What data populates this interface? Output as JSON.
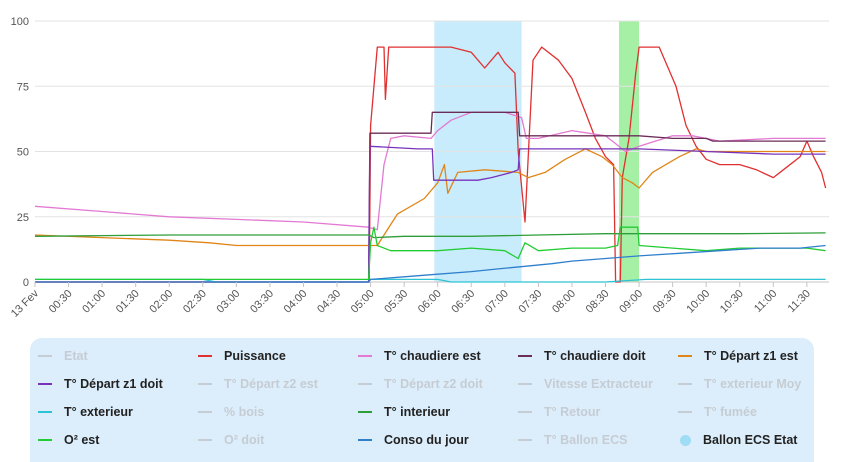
{
  "chart_data": {
    "type": "line",
    "y_ticks": [
      "0",
      "25",
      "50",
      "75",
      "100"
    ],
    "ylim": [
      0,
      100
    ],
    "x_ticks": [
      "13 Fev",
      "00:30",
      "01:00",
      "01:30",
      "02:00",
      "02:30",
      "03:00",
      "03:30",
      "04:00",
      "04:30",
      "05:00",
      "05:30",
      "06:00",
      "06:30",
      "07:00",
      "07:30",
      "08:00",
      "08:30",
      "09:00",
      "09:30",
      "10:00",
      "10:30",
      "11:00",
      "11:30"
    ],
    "x_unit": "hours since midnight 13 Fev",
    "xlim": [
      0,
      11.83
    ],
    "bands": [
      {
        "series": "Ballon ECS Etat",
        "x0": 5.95,
        "x1": 7.25,
        "color": "#c8ecfb"
      },
      {
        "series": "Ballon ECS Etat",
        "x0": 8.7,
        "x1": 9.0,
        "color": "#a6f0a6"
      }
    ],
    "series": [
      {
        "name": "Etat",
        "color": "#c6ccd3",
        "visible": false,
        "marker": "line",
        "points": []
      },
      {
        "name": "Puissance",
        "color": "#e03030",
        "visible": true,
        "marker": "line",
        "points": [
          [
            0,
            0
          ],
          [
            4.98,
            0
          ],
          [
            5.0,
            60
          ],
          [
            5.1,
            90
          ],
          [
            5.2,
            90
          ],
          [
            5.22,
            70
          ],
          [
            5.27,
            90
          ],
          [
            5.5,
            90
          ],
          [
            6.2,
            90
          ],
          [
            6.5,
            88
          ],
          [
            6.7,
            82
          ],
          [
            6.9,
            88
          ],
          [
            7.0,
            84
          ],
          [
            7.15,
            80
          ],
          [
            7.2,
            50
          ],
          [
            7.3,
            23
          ],
          [
            7.42,
            85
          ],
          [
            7.55,
            90
          ],
          [
            7.8,
            85
          ],
          [
            8.0,
            78
          ],
          [
            8.2,
            65
          ],
          [
            8.35,
            55
          ],
          [
            8.5,
            48
          ],
          [
            8.62,
            45
          ],
          [
            8.65,
            0
          ],
          [
            8.72,
            0
          ],
          [
            8.75,
            40
          ],
          [
            8.85,
            55
          ],
          [
            8.95,
            80
          ],
          [
            9.0,
            90
          ],
          [
            9.3,
            90
          ],
          [
            9.55,
            75
          ],
          [
            9.7,
            60
          ],
          [
            9.85,
            52
          ],
          [
            10.0,
            47
          ],
          [
            10.2,
            45
          ],
          [
            10.5,
            45
          ],
          [
            10.75,
            43
          ],
          [
            11.0,
            40
          ],
          [
            11.2,
            44
          ],
          [
            11.4,
            48
          ],
          [
            11.5,
            54
          ],
          [
            11.6,
            48
          ],
          [
            11.72,
            42
          ],
          [
            11.78,
            36
          ]
        ]
      },
      {
        "name": "T° chaudiere est",
        "color": "#e27ad3",
        "visible": true,
        "marker": "line",
        "points": [
          [
            0,
            29
          ],
          [
            1.0,
            27
          ],
          [
            2.0,
            25
          ],
          [
            3.0,
            24
          ],
          [
            4.0,
            23
          ],
          [
            4.97,
            21
          ],
          [
            5.1,
            20
          ],
          [
            5.2,
            45
          ],
          [
            5.3,
            55
          ],
          [
            5.5,
            56
          ],
          [
            5.9,
            55
          ],
          [
            6.0,
            58
          ],
          [
            6.2,
            62
          ],
          [
            6.5,
            65
          ],
          [
            7.0,
            65
          ],
          [
            7.25,
            63
          ],
          [
            7.32,
            55
          ],
          [
            7.5,
            55
          ],
          [
            8.0,
            58
          ],
          [
            8.5,
            56
          ],
          [
            8.8,
            50
          ],
          [
            9.0,
            52
          ],
          [
            9.5,
            56
          ],
          [
            9.8,
            56
          ],
          [
            10.2,
            54
          ],
          [
            11.0,
            55
          ],
          [
            11.78,
            55
          ]
        ]
      },
      {
        "name": "T° chaudiere doit",
        "color": "#6b2c57",
        "visible": true,
        "marker": "line",
        "points": [
          [
            0,
            0
          ],
          [
            4.97,
            0
          ],
          [
            4.99,
            57
          ],
          [
            5.9,
            57
          ],
          [
            5.92,
            65
          ],
          [
            7.2,
            65
          ],
          [
            7.22,
            56
          ],
          [
            9.0,
            56
          ],
          [
            9.5,
            55
          ],
          [
            10.0,
            55
          ],
          [
            10.1,
            54
          ],
          [
            11.78,
            54
          ]
        ]
      },
      {
        "name": "T° Départ z1 est",
        "color": "#e18517",
        "visible": true,
        "marker": "line",
        "points": [
          [
            0,
            18
          ],
          [
            1.0,
            17
          ],
          [
            2.0,
            16
          ],
          [
            2.6,
            15
          ],
          [
            3.0,
            14
          ],
          [
            4.97,
            14
          ],
          [
            5.1,
            14
          ],
          [
            5.2,
            18
          ],
          [
            5.4,
            26
          ],
          [
            5.8,
            32
          ],
          [
            6.0,
            38
          ],
          [
            6.1,
            45
          ],
          [
            6.15,
            34
          ],
          [
            6.3,
            42
          ],
          [
            6.7,
            43
          ],
          [
            7.2,
            42
          ],
          [
            7.35,
            40
          ],
          [
            7.6,
            42
          ],
          [
            7.9,
            47
          ],
          [
            8.2,
            51
          ],
          [
            8.45,
            48
          ],
          [
            8.6,
            45
          ],
          [
            8.75,
            40
          ],
          [
            8.9,
            38
          ],
          [
            9.0,
            36
          ],
          [
            9.2,
            42
          ],
          [
            9.6,
            48
          ],
          [
            9.85,
            51
          ],
          [
            10.0,
            50
          ],
          [
            10.5,
            50
          ],
          [
            11.0,
            50
          ],
          [
            11.78,
            50
          ]
        ]
      },
      {
        "name": "T° Départ z1 doit",
        "color": "#7733bb",
        "visible": true,
        "marker": "line",
        "points": [
          [
            0,
            0
          ],
          [
            4.97,
            0
          ],
          [
            4.99,
            52
          ],
          [
            5.7,
            51
          ],
          [
            5.92,
            51
          ],
          [
            5.94,
            39
          ],
          [
            6.6,
            39
          ],
          [
            6.8,
            40
          ],
          [
            7.1,
            42
          ],
          [
            7.2,
            43
          ],
          [
            7.22,
            51
          ],
          [
            8.0,
            51
          ],
          [
            9.0,
            51
          ],
          [
            10.0,
            50
          ],
          [
            11.0,
            49
          ],
          [
            11.78,
            49
          ]
        ]
      },
      {
        "name": "T° Départ z2 est",
        "color": "#c6ccd3",
        "visible": false,
        "marker": "line",
        "points": []
      },
      {
        "name": "T° Départ z2 doit",
        "color": "#c6ccd3",
        "visible": false,
        "marker": "line",
        "points": []
      },
      {
        "name": "Vitesse Extracteur",
        "color": "#c6ccd3",
        "visible": false,
        "marker": "line",
        "points": []
      },
      {
        "name": "T° exterieur Moy",
        "color": "#c6ccd3",
        "visible": false,
        "marker": "line",
        "points": []
      },
      {
        "name": "T° exterieur",
        "color": "#2cc4d4",
        "visible": true,
        "marker": "line",
        "points": [
          [
            0,
            1
          ],
          [
            2.5,
            1
          ],
          [
            2.7,
            0
          ],
          [
            4.97,
            0
          ],
          [
            5.0,
            1
          ],
          [
            6.0,
            1
          ],
          [
            6.2,
            0
          ],
          [
            8.5,
            0
          ],
          [
            9.1,
            1
          ],
          [
            10.0,
            1
          ],
          [
            11.78,
            1
          ]
        ]
      },
      {
        "name": "% bois",
        "color": "#c6ccd3",
        "visible": false,
        "marker": "line",
        "points": []
      },
      {
        "name": "T° interieur",
        "color": "#2e9e38",
        "visible": true,
        "marker": "line",
        "points": [
          [
            0,
            17.5
          ],
          [
            2.0,
            18
          ],
          [
            4.0,
            18
          ],
          [
            4.97,
            18
          ],
          [
            5.05,
            17
          ],
          [
            5.5,
            17.5
          ],
          [
            6.5,
            17.5
          ],
          [
            7.5,
            18
          ],
          [
            8.5,
            18.5
          ],
          [
            9.5,
            18.5
          ],
          [
            10.5,
            18.5
          ],
          [
            11.78,
            18.8
          ]
        ]
      },
      {
        "name": "T° Retour",
        "color": "#c6ccd3",
        "visible": false,
        "marker": "line",
        "points": []
      },
      {
        "name": "T° fumée",
        "color": "#c6ccd3",
        "visible": false,
        "marker": "line",
        "points": []
      },
      {
        "name": "O² est",
        "color": "#22cc33",
        "visible": true,
        "marker": "line",
        "points": [
          [
            0,
            1
          ],
          [
            1.0,
            1
          ],
          [
            2.0,
            1
          ],
          [
            3.0,
            1
          ],
          [
            4.0,
            1
          ],
          [
            4.97,
            1
          ],
          [
            5.0,
            15
          ],
          [
            5.05,
            21
          ],
          [
            5.1,
            14
          ],
          [
            5.3,
            12
          ],
          [
            5.6,
            12
          ],
          [
            6.0,
            12
          ],
          [
            6.5,
            13
          ],
          [
            7.0,
            12
          ],
          [
            7.2,
            9
          ],
          [
            7.3,
            15
          ],
          [
            7.5,
            12
          ],
          [
            8.0,
            13
          ],
          [
            8.5,
            13
          ],
          [
            8.68,
            14
          ],
          [
            8.72,
            21
          ],
          [
            8.98,
            21
          ],
          [
            9.0,
            14
          ],
          [
            9.5,
            13
          ],
          [
            10.0,
            12
          ],
          [
            10.5,
            13
          ],
          [
            11.0,
            13
          ],
          [
            11.5,
            13
          ],
          [
            11.78,
            12
          ]
        ]
      },
      {
        "name": "O² doit",
        "color": "#c6ccd3",
        "visible": false,
        "marker": "line",
        "points": []
      },
      {
        "name": "Conso du jour",
        "color": "#2f7fcc",
        "visible": true,
        "marker": "line",
        "points": [
          [
            0,
            0
          ],
          [
            4.97,
            0
          ],
          [
            5.0,
            1
          ],
          [
            5.5,
            2
          ],
          [
            6.0,
            3
          ],
          [
            6.5,
            4
          ],
          [
            6.9,
            5
          ],
          [
            7.3,
            6
          ],
          [
            7.7,
            7
          ],
          [
            8.0,
            8
          ],
          [
            8.5,
            9
          ],
          [
            9.0,
            10
          ],
          [
            9.6,
            11
          ],
          [
            10.2,
            12
          ],
          [
            10.8,
            13
          ],
          [
            11.4,
            13
          ],
          [
            11.78,
            14
          ]
        ]
      },
      {
        "name": "T° Ballon ECS",
        "color": "#c6ccd3",
        "visible": false,
        "marker": "line",
        "points": []
      },
      {
        "name": "Ballon ECS Etat",
        "color": "#9fdcf5",
        "visible": true,
        "marker": "dot",
        "points": []
      }
    ]
  }
}
